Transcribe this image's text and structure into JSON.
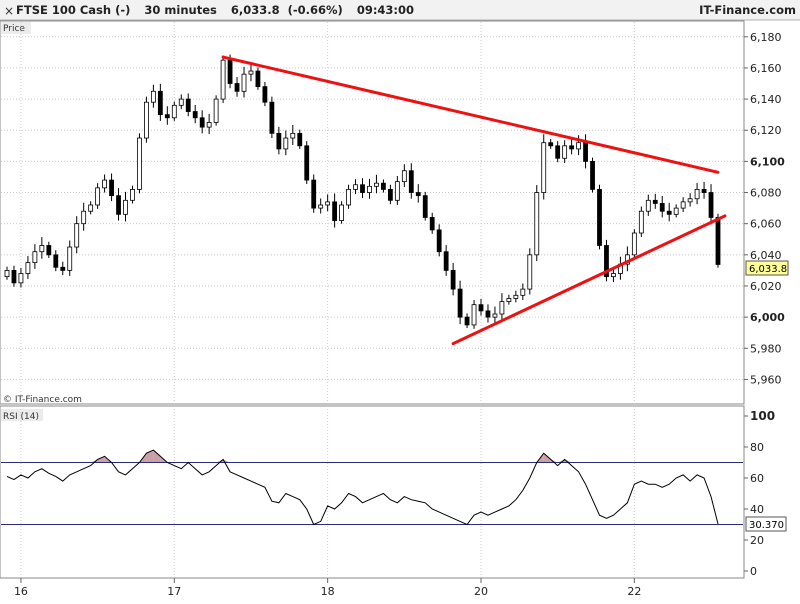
{
  "header": {
    "instrument": "FTSE 100 Cash (-)",
    "interval": "30 minutes",
    "last_price": "6,033.8",
    "change": "(-0.66%)",
    "time": "09:43:00",
    "brand": "IT-Finance.com"
  },
  "price_panel": {
    "label": "Price",
    "copyright": "© IT-Finance.com",
    "last_price_label": "6,033.8"
  },
  "rsi_panel": {
    "label": "RSI (14)",
    "last_value_label": "30.370"
  },
  "colors": {
    "up_candle": "#ffffff",
    "down_candle": "#000000",
    "trendline": "#ee1111",
    "rsi_line": "#000000",
    "rsi_band": "#2b2b7a",
    "overbought_fill": "#c9a0a8",
    "oversold_fill": "#8ea0e0",
    "grid": "#cccccc",
    "last_price_bg": "#ffff99"
  },
  "chart_data": [
    {
      "type": "candlestick",
      "title": "FTSE 100 Cash (-) · 30 minutes",
      "ylabel": "Price",
      "ylim": [
        5950,
        6185
      ],
      "y_ticks": [
        {
          "value": 6180,
          "label": "6,180",
          "bold": false
        },
        {
          "value": 6160,
          "label": "6,160",
          "bold": false
        },
        {
          "value": 6140,
          "label": "6,140",
          "bold": false
        },
        {
          "value": 6120,
          "label": "6,120",
          "bold": false
        },
        {
          "value": 6100,
          "label": "6,100",
          "bold": true
        },
        {
          "value": 6080,
          "label": "6,080",
          "bold": false
        },
        {
          "value": 6060,
          "label": "6,060",
          "bold": false
        },
        {
          "value": 6040,
          "label": "6,040",
          "bold": false
        },
        {
          "value": 6020,
          "label": "6,020",
          "bold": false
        },
        {
          "value": 6000,
          "label": "6,000",
          "bold": true
        },
        {
          "value": 5980,
          "label": "5,980",
          "bold": false
        },
        {
          "value": 5960,
          "label": "5,960",
          "bold": false
        }
      ],
      "x_ticks": [
        {
          "index": 2,
          "label": "16"
        },
        {
          "index": 24,
          "label": "17"
        },
        {
          "index": 46,
          "label": "18"
        },
        {
          "index": 68,
          "label": "20"
        },
        {
          "index": 90,
          "label": "22"
        }
      ],
      "grid": true,
      "last_price": 6033.8,
      "trendlines": [
        {
          "name": "upper",
          "from": [
            31,
            6167
          ],
          "to": [
            102,
            6093
          ]
        },
        {
          "name": "lower",
          "from": [
            64,
            5983
          ],
          "to": [
            103,
            6065
          ]
        }
      ],
      "closes": [
        6030,
        6022,
        6028,
        6035,
        6042,
        6046,
        6040,
        6032,
        6030,
        6045,
        6060,
        6068,
        6072,
        6083,
        6088,
        6078,
        6066,
        6075,
        6082,
        6115,
        6138,
        6145,
        6130,
        6128,
        6136,
        6140,
        6132,
        6128,
        6122,
        6125,
        6140,
        6165,
        6150,
        6145,
        6156,
        6158,
        6148,
        6138,
        6118,
        6108,
        6115,
        6118,
        6110,
        6088,
        6070,
        6072,
        6074,
        6062,
        6072,
        6082,
        6085,
        6080,
        6084,
        6086,
        6082,
        6075,
        6087,
        6094,
        6080,
        6078,
        6064,
        6056,
        6042,
        6030,
        6018,
        6000,
        5995,
        6008,
        6004,
        6000,
        6002,
        6010,
        6012,
        6014,
        6018,
        6040,
        6080,
        6112,
        6110,
        6102,
        6110,
        6108,
        6112,
        6100,
        6082,
        6046,
        6026,
        6028,
        6034,
        6040,
        6054,
        6068,
        6075,
        6073,
        6068,
        6066,
        6070,
        6074,
        6076,
        6082,
        6080,
        6064,
        6033.8
      ],
      "rsi": {
        "name": "RSI (14)",
        "ylim": [
          0,
          100
        ],
        "y_ticks": [
          100,
          80,
          60,
          40,
          20,
          0
        ],
        "levels": [
          70,
          30
        ],
        "last_value": 30.37,
        "values": [
          61,
          59,
          62,
          60,
          64,
          66,
          63,
          61,
          58,
          62,
          64,
          66,
          68,
          72,
          74,
          70,
          64,
          62,
          66,
          70,
          76,
          78,
          74,
          70,
          68,
          66,
          70,
          66,
          62,
          64,
          68,
          72,
          64,
          62,
          60,
          58,
          56,
          54,
          45,
          44,
          50,
          48,
          46,
          40,
          30,
          32,
          42,
          40,
          44,
          50,
          48,
          44,
          46,
          48,
          50,
          46,
          44,
          48,
          46,
          45,
          44,
          40,
          38,
          36,
          34,
          32,
          30,
          36,
          38,
          36,
          38,
          40,
          42,
          46,
          52,
          60,
          70,
          76,
          72,
          68,
          72,
          68,
          64,
          56,
          46,
          36,
          34,
          36,
          40,
          44,
          56,
          58,
          56,
          56,
          54,
          56,
          60,
          62,
          58,
          62,
          60,
          48,
          30.37
        ]
      }
    }
  ]
}
